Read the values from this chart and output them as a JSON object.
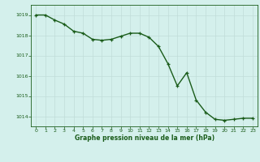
{
  "x": [
    0,
    1,
    2,
    3,
    4,
    5,
    6,
    7,
    8,
    9,
    10,
    11,
    12,
    13,
    14,
    15,
    16,
    17,
    18,
    19,
    20,
    21,
    22,
    23
  ],
  "y": [
    1019.0,
    1019.0,
    1018.75,
    1018.55,
    1018.2,
    1018.1,
    1017.8,
    1017.75,
    1017.8,
    1017.95,
    1018.1,
    1018.1,
    1017.9,
    1017.45,
    1016.6,
    1015.5,
    1016.15,
    1014.8,
    1014.2,
    1013.85,
    1013.8,
    1013.85,
    1013.9,
    1013.9
  ],
  "ylim": [
    1013.5,
    1019.5
  ],
  "xlim": [
    -0.5,
    23.5
  ],
  "yticks": [
    1014,
    1015,
    1016,
    1017,
    1018,
    1019
  ],
  "xticks": [
    0,
    1,
    2,
    3,
    4,
    5,
    6,
    7,
    8,
    9,
    10,
    11,
    12,
    13,
    14,
    15,
    16,
    17,
    18,
    19,
    20,
    21,
    22,
    23
  ],
  "xlabel": "Graphe pression niveau de la mer (hPa)",
  "line_color": "#1a5c1a",
  "marker": "+",
  "marker_size": 3.5,
  "bg_color": "#d4f0ec",
  "grid_color": "#c0ddd8",
  "tick_color": "#1a5c1a",
  "label_color": "#1a5c1a",
  "linewidth": 1.0,
  "fig_width": 3.2,
  "fig_height": 2.0,
  "dpi": 100
}
